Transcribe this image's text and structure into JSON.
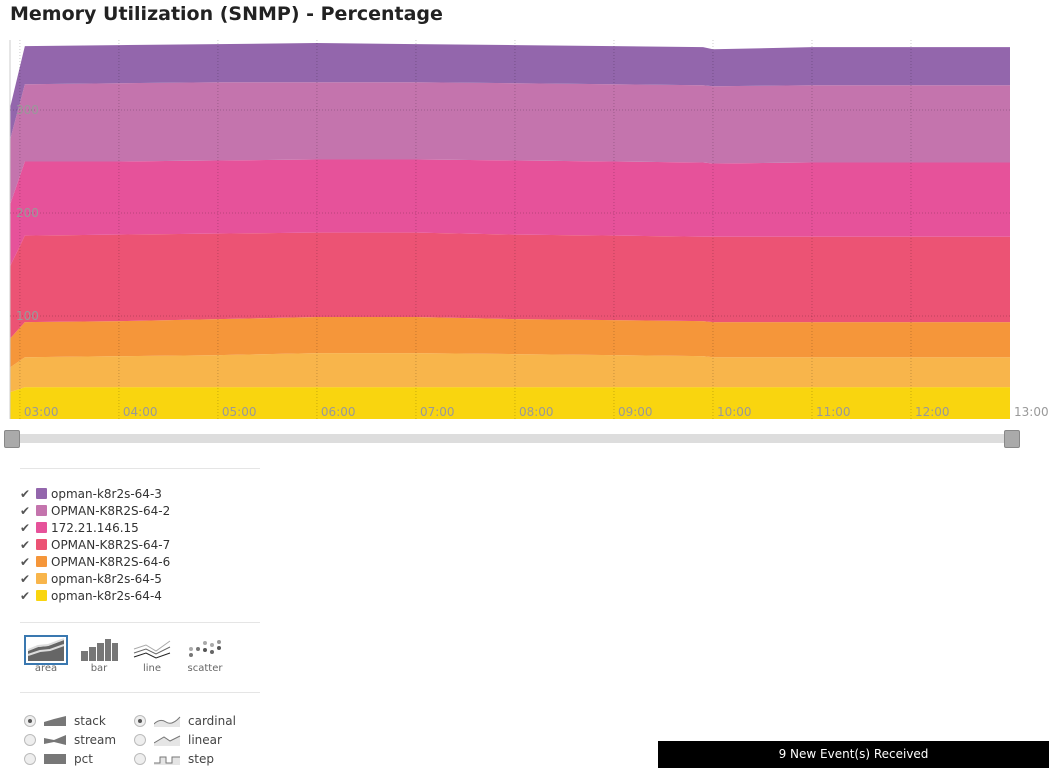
{
  "title": "Memory Utilization (SNMP) - Percentage",
  "chart_data": {
    "type": "area",
    "stacking": "stack",
    "interpolation": "cardinal",
    "title": "Memory Utilization (SNMP) - Percentage",
    "x": [
      2.9,
      3.05,
      4,
      5,
      6,
      7,
      8,
      9,
      9.9,
      10,
      11,
      12,
      13
    ],
    "x_tick_labels": [
      "03:00",
      "04:00",
      "05:00",
      "06:00",
      "07:00",
      "08:00",
      "09:00",
      "10:00",
      "11:00",
      "12:00",
      "13:00"
    ],
    "y_tick_labels": [
      "100",
      "200",
      "300"
    ],
    "ylim": [
      0,
      370
    ],
    "series": [
      {
        "name": "opman-k8r2s-64-4",
        "color": "#f9d50f",
        "values": [
          26,
          31,
          31,
          31,
          31,
          31,
          31,
          31,
          31,
          31,
          31,
          31,
          31
        ]
      },
      {
        "name": "opman-k8r2s-64-5",
        "color": "#f8b54b",
        "values": [
          24,
          29,
          30,
          31,
          33,
          33,
          32,
          31,
          30,
          29,
          29,
          29,
          29
        ]
      },
      {
        "name": "OPMAN-K8R2S-64-6",
        "color": "#f5963a",
        "values": [
          28,
          34,
          34,
          35,
          35,
          35,
          34,
          34,
          34,
          34,
          34,
          34,
          34
        ]
      },
      {
        "name": "OPMAN-K8R2S-64-7",
        "color": "#ec5374",
        "values": [
          70,
          84,
          84,
          83,
          82,
          82,
          82,
          82,
          82,
          83,
          83,
          83,
          83
        ]
      },
      {
        "name": "172.21.146.15",
        "color": "#e6529a",
        "values": [
          60,
          72,
          71,
          71,
          71,
          71,
          72,
          72,
          72,
          71,
          72,
          72,
          72
        ]
      },
      {
        "name": "OPMAN-K8R2S-64-2",
        "color": "#c474ad",
        "values": [
          63,
          75,
          76,
          76,
          75,
          75,
          75,
          75,
          75,
          75,
          75,
          75,
          75
        ]
      },
      {
        "name": "opman-k8r2s-64-3",
        "color": "#9366ac",
        "values": [
          31,
          37,
          37,
          37,
          38,
          37,
          37,
          37,
          37,
          36,
          37,
          37,
          37
        ]
      }
    ]
  },
  "legend": [
    {
      "label": "opman-k8r2s-64-3",
      "color": "#9366ac"
    },
    {
      "label": "OPMAN-K8R2S-64-2",
      "color": "#c474ad"
    },
    {
      "label": "172.21.146.15",
      "color": "#e6529a"
    },
    {
      "label": "OPMAN-K8R2S-64-7",
      "color": "#ec5374"
    },
    {
      "label": "OPMAN-K8R2S-64-6",
      "color": "#f5963a"
    },
    {
      "label": "opman-k8r2s-64-5",
      "color": "#f8b54b"
    },
    {
      "label": "opman-k8r2s-64-4",
      "color": "#f9d50f"
    }
  ],
  "check_mark": "✔",
  "renderers": [
    "area",
    "bar",
    "line",
    "scatter"
  ],
  "offset_options": [
    "stack",
    "stream",
    "pct"
  ],
  "interpolation_options": [
    "cardinal",
    "linear",
    "step"
  ],
  "events": "9 New Event(s) Received"
}
